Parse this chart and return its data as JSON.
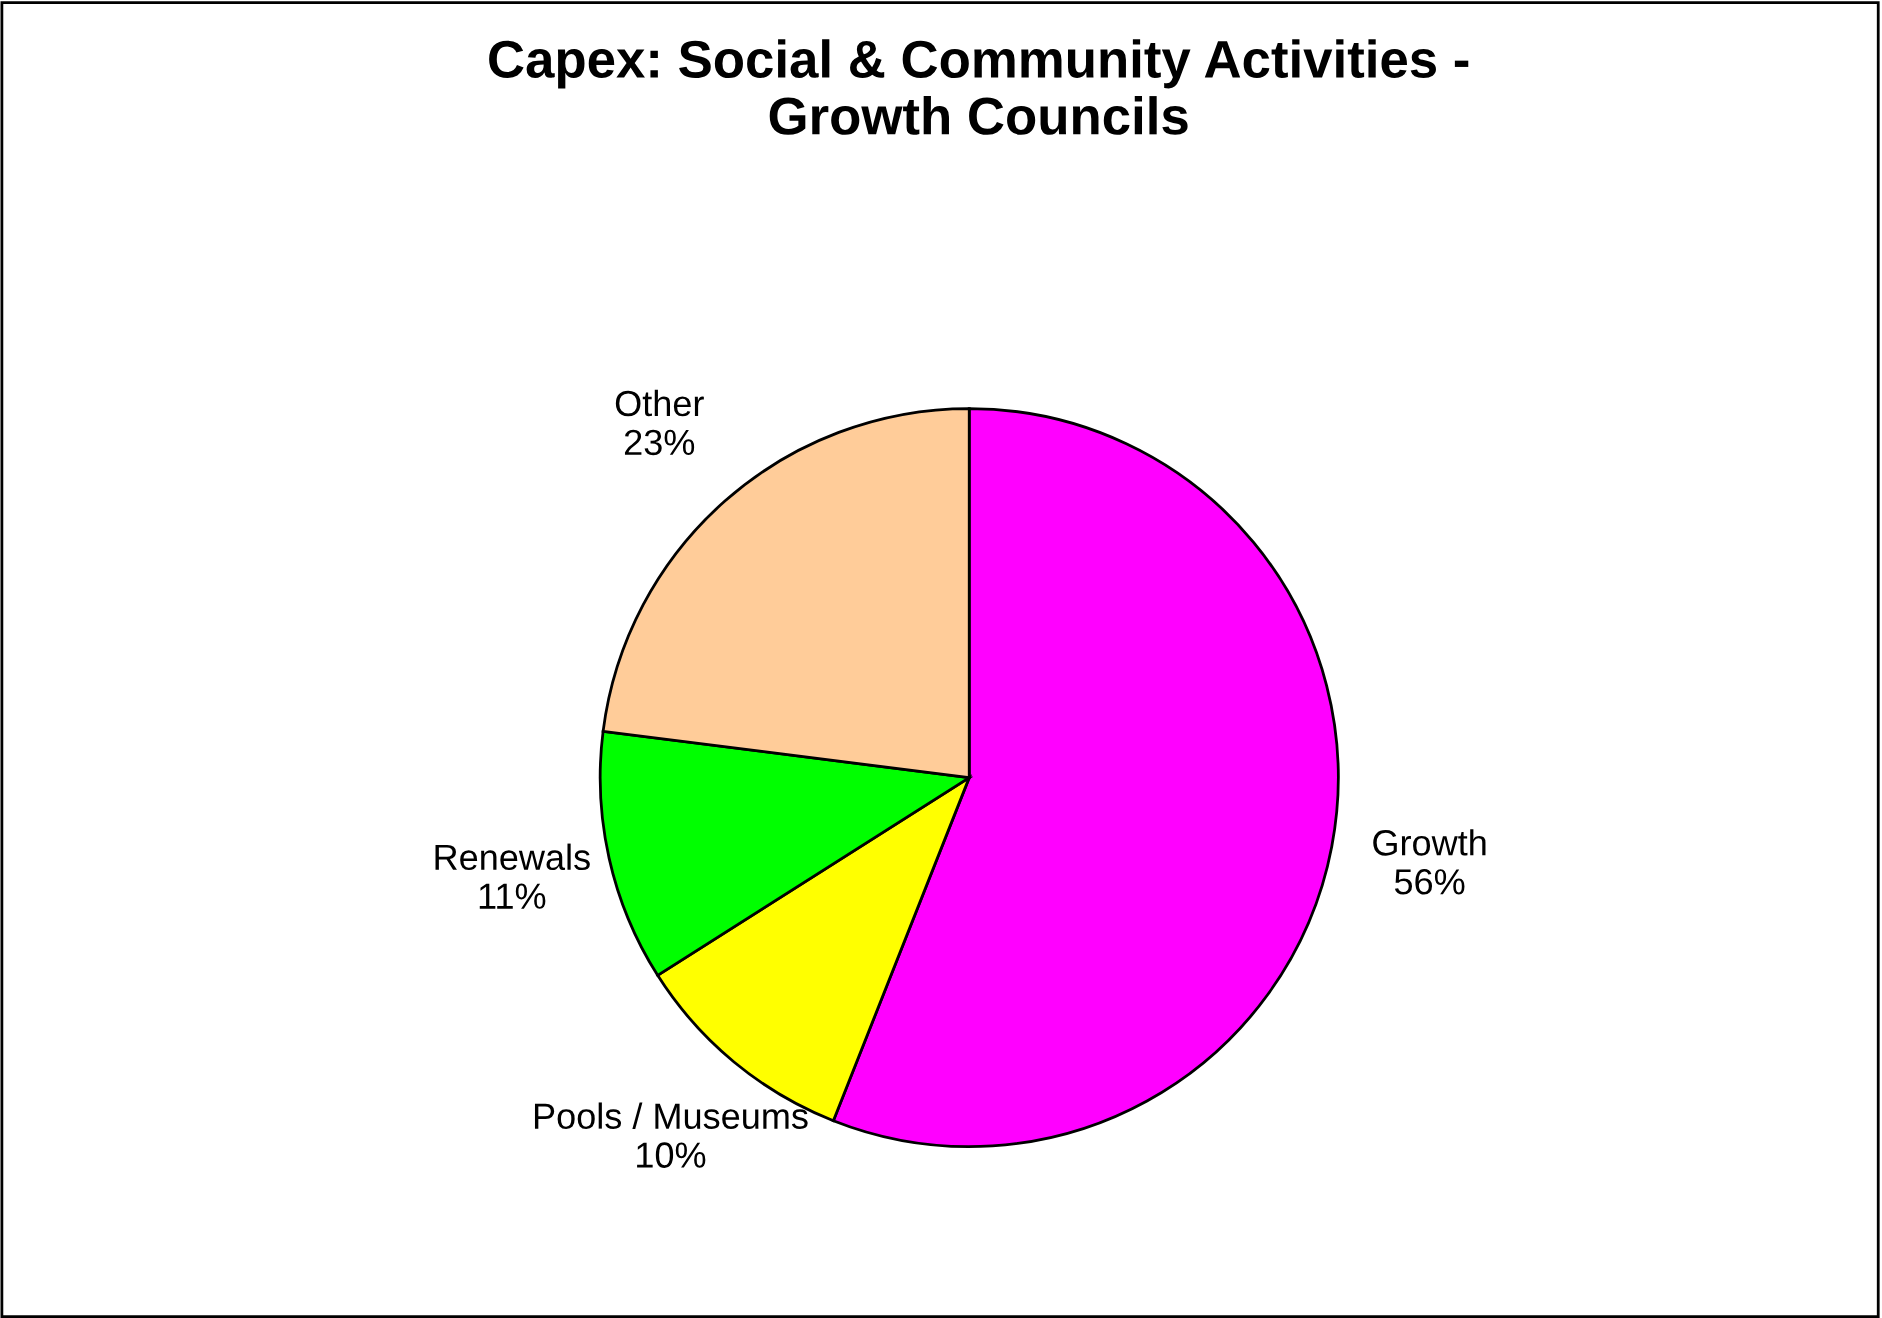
{
  "chart_data": {
    "type": "pie",
    "title": "Capex: Social & Community Activities -\nGrowth Councils",
    "categories": [
      "Growth",
      "Pools / Museums",
      "Renewals",
      "Other"
    ],
    "values": [
      56,
      10,
      11,
      23
    ],
    "value_labels": [
      "56%",
      "10%",
      "11%",
      "23%"
    ],
    "colors": [
      "#ff00ff",
      "#ffff00",
      "#00ff00",
      "#ffcc99"
    ]
  }
}
